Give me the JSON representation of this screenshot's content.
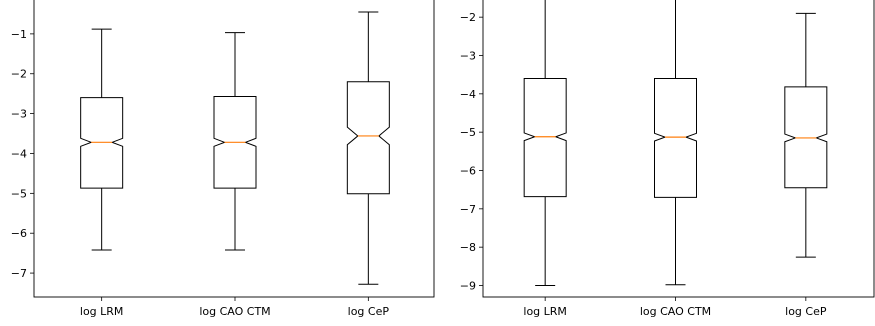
{
  "chart_data": [
    {
      "type": "boxplot",
      "notched": true,
      "categories": [
        "log LRM",
        "log CAO CTM",
        "log CeP"
      ],
      "ylim": [
        -7.6,
        -0.1
      ],
      "yticks": [
        -1,
        -2,
        -3,
        -4,
        -5,
        -6,
        -7
      ],
      "ytick_labels": [
        "−1",
        "−2",
        "−3",
        "−4",
        "−5",
        "−6",
        "−7"
      ],
      "boxes": [
        {
          "whisker_low": -6.42,
          "q1": -4.87,
          "median": -3.72,
          "q3": -2.6,
          "whisker_high": -0.88,
          "notch_low": -3.82,
          "notch_high": -3.62
        },
        {
          "whisker_low": -6.42,
          "q1": -4.87,
          "median": -3.72,
          "q3": -2.57,
          "whisker_high": -0.97,
          "notch_low": -3.82,
          "notch_high": -3.62
        },
        {
          "whisker_low": -7.28,
          "q1": -5.01,
          "median": -3.56,
          "q3": -2.2,
          "whisker_high": -0.45,
          "notch_low": -3.78,
          "notch_high": -3.34
        }
      ]
    },
    {
      "type": "boxplot",
      "notched": true,
      "categories": [
        "log LRM",
        "log CAO CTM",
        "log CeP"
      ],
      "ylim": [
        -9.3,
        -1.5
      ],
      "yticks": [
        -2,
        -3,
        -4,
        -5,
        -6,
        -7,
        -8,
        -9
      ],
      "ytick_labels": [
        "−2",
        "−3",
        "−4",
        "−5",
        "−6",
        "−7",
        "−8",
        "−9"
      ],
      "boxes": [
        {
          "whisker_low": -9.0,
          "q1": -6.68,
          "median": -5.12,
          "q3": -3.6,
          "whisker_high": -1.5,
          "notch_low": -5.22,
          "notch_high": -5.02
        },
        {
          "whisker_low": -8.98,
          "q1": -6.7,
          "median": -5.13,
          "q3": -3.6,
          "whisker_high": -1.5,
          "notch_low": -5.23,
          "notch_high": -5.03
        },
        {
          "whisker_low": -8.26,
          "q1": -6.45,
          "median": -5.15,
          "q3": -3.82,
          "whisker_high": -1.9,
          "notch_low": -5.25,
          "notch_high": -5.05
        }
      ]
    }
  ],
  "colors": {
    "box": "#000000",
    "median": "#ff7f0e",
    "axes": "#000000"
  }
}
